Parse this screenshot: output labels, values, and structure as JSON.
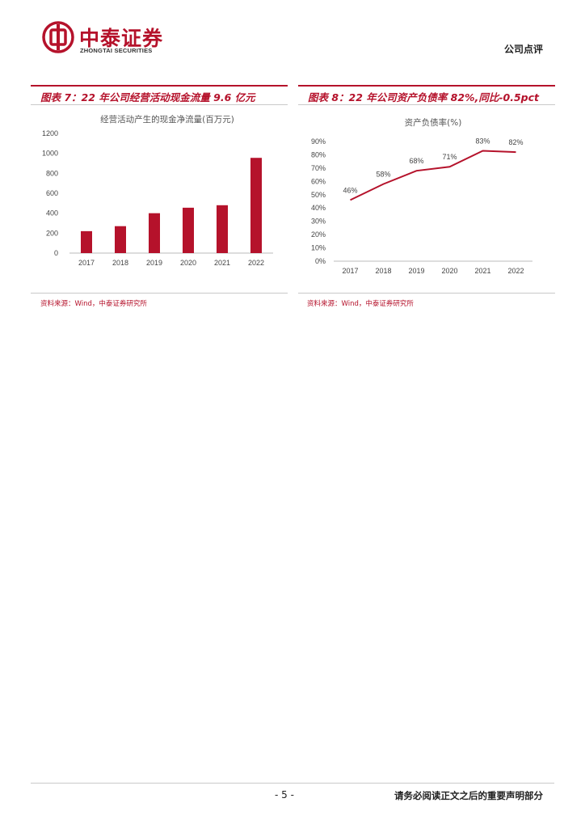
{
  "header": {
    "logo_cn": "中泰证券",
    "logo_en": "ZHONGTAI SECURITIES",
    "doc_type": "公司点评"
  },
  "figures": [
    {
      "title": "图表 7：22 年公司经营活动现金流量 9.6 亿元",
      "source": "资料来源：Wind，中泰证券研究所"
    },
    {
      "title": "图表 8：22 年公司资产负债率 82%,同比-0.5pct",
      "source": "资料来源：Wind，中泰证券研究所"
    }
  ],
  "chart_data": [
    {
      "type": "bar",
      "title": "经营活动产生的现金净流量(百万元)",
      "categories": [
        "2017",
        "2018",
        "2019",
        "2020",
        "2021",
        "2022"
      ],
      "values": [
        220,
        270,
        400,
        455,
        480,
        955
      ],
      "ylim": [
        0,
        1200
      ],
      "yticks": [
        "0",
        "200",
        "400",
        "600",
        "800",
        "1000",
        "1200"
      ],
      "grid": false,
      "color": "#b5122b"
    },
    {
      "type": "line",
      "title": "资产负债率(%)",
      "categories": [
        "2017",
        "2018",
        "2019",
        "2020",
        "2021",
        "2022"
      ],
      "values": [
        46,
        58,
        68,
        71,
        83,
        82
      ],
      "data_labels": [
        "46%",
        "58%",
        "68%",
        "71%",
        "83%",
        "82%"
      ],
      "ylim": [
        0,
        90
      ],
      "yticks": [
        "0%",
        "10%",
        "20%",
        "30%",
        "40%",
        "50%",
        "60%",
        "70%",
        "80%",
        "90%"
      ],
      "grid": false,
      "color": "#b5122b"
    }
  ],
  "footer": {
    "page": "- 5 -",
    "disclaimer": "请务必阅读正文之后的重要声明部分"
  }
}
